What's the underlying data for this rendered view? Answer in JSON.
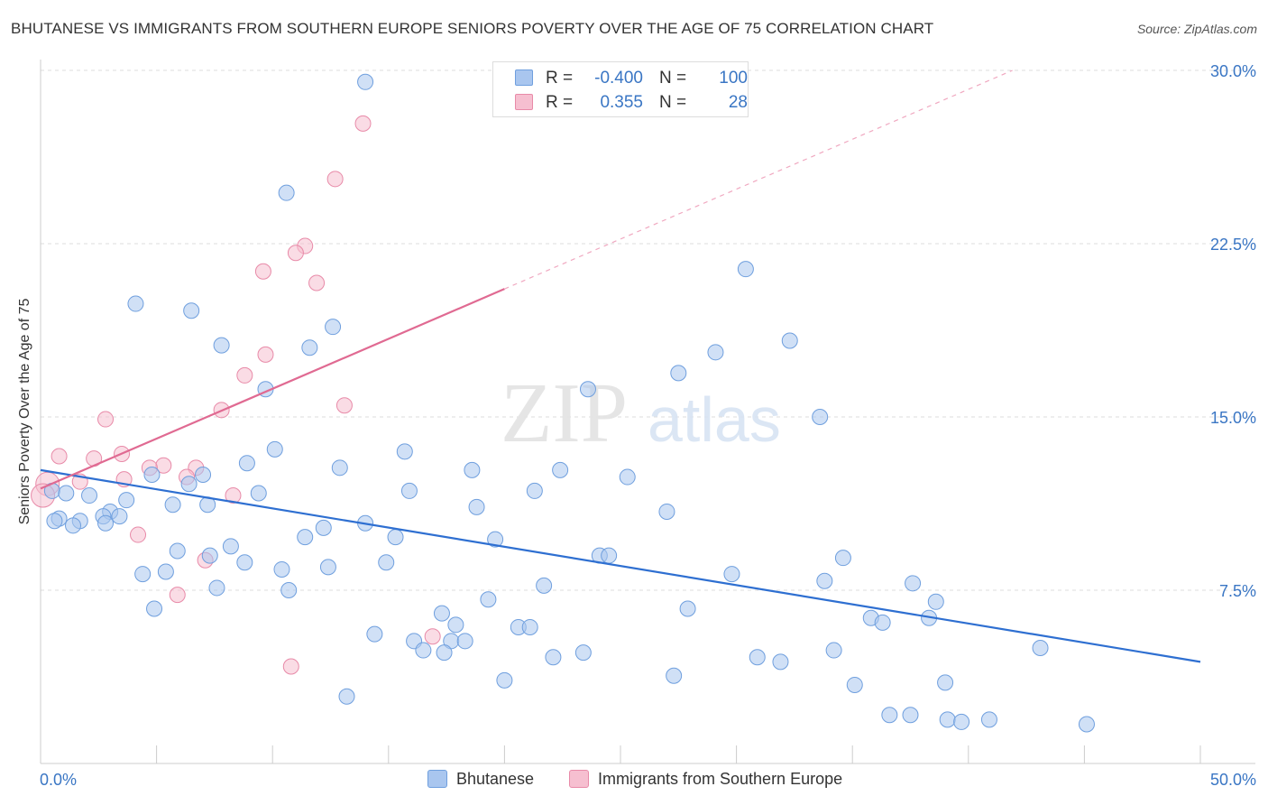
{
  "title": "BHUTANESE VS IMMIGRANTS FROM SOUTHERN EUROPE SENIORS POVERTY OVER THE AGE OF 75 CORRELATION CHART",
  "source": "Source: ZipAtlas.com",
  "watermark": {
    "part1": "ZIP",
    "part2": "atlas"
  },
  "legend_stats": [
    {
      "r_label": "R =",
      "r_value": "-0.400",
      "n_label": "N =",
      "n_value": "100",
      "color": "#a9c6ef",
      "border": "#6f9fde"
    },
    {
      "r_label": "R =",
      "r_value": "0.355",
      "n_label": "N =",
      "n_value": "28",
      "color": "#f6bfd0",
      "border": "#e88aa8"
    }
  ],
  "bottom_legend": [
    {
      "label": "Bhutanese",
      "color": "#a9c6ef",
      "border": "#6f9fde"
    },
    {
      "label": "Immigrants from Southern Europe",
      "color": "#f6bfd0",
      "border": "#e88aa8"
    }
  ],
  "chart_data": {
    "type": "scatter",
    "title": "BHUTANESE VS IMMIGRANTS FROM SOUTHERN EUROPE SENIORS POVERTY OVER THE AGE OF 75 CORRELATION CHART",
    "xlabel": "",
    "ylabel": "Seniors Poverty Over the Age of 75",
    "xlim": [
      0,
      50
    ],
    "ylim": [
      0,
      30
    ],
    "x_tick_labels": [
      "0.0%",
      "50.0%"
    ],
    "y_ticks": [
      7.5,
      15.0,
      22.5,
      30.0
    ],
    "y_tick_labels": [
      "7.5%",
      "15.0%",
      "22.5%",
      "30.0%"
    ],
    "grid": true,
    "series": [
      {
        "name": "Bhutanese",
        "color": "#6f9fde",
        "fill": "#a9c6ef",
        "trend": {
          "x": [
            0,
            50
          ],
          "y": [
            12.7,
            4.4
          ],
          "color": "#2e6fd1"
        },
        "points": [
          [
            14.0,
            29.5
          ],
          [
            10.6,
            24.7
          ],
          [
            30.4,
            21.4
          ],
          [
            4.1,
            19.9
          ],
          [
            6.5,
            19.6
          ],
          [
            12.6,
            18.9
          ],
          [
            7.8,
            18.1
          ],
          [
            11.6,
            18.0
          ],
          [
            29.1,
            17.8
          ],
          [
            32.3,
            18.3
          ],
          [
            27.5,
            16.9
          ],
          [
            9.7,
            16.2
          ],
          [
            23.6,
            16.2
          ],
          [
            33.6,
            15.0
          ],
          [
            10.1,
            13.6
          ],
          [
            15.7,
            13.5
          ],
          [
            4.8,
            12.5
          ],
          [
            7.0,
            12.5
          ],
          [
            8.9,
            13.0
          ],
          [
            12.9,
            12.8
          ],
          [
            18.6,
            12.7
          ],
          [
            22.4,
            12.7
          ],
          [
            25.3,
            12.4
          ],
          [
            6.4,
            12.1
          ],
          [
            0.5,
            11.8
          ],
          [
            1.1,
            11.7
          ],
          [
            2.1,
            11.6
          ],
          [
            9.4,
            11.7
          ],
          [
            15.9,
            11.8
          ],
          [
            21.3,
            11.8
          ],
          [
            3.7,
            11.4
          ],
          [
            5.7,
            11.2
          ],
          [
            7.2,
            11.2
          ],
          [
            18.8,
            11.1
          ],
          [
            27.0,
            10.9
          ],
          [
            3.0,
            10.9
          ],
          [
            3.4,
            10.7
          ],
          [
            0.8,
            10.6
          ],
          [
            1.7,
            10.5
          ],
          [
            2.7,
            10.7
          ],
          [
            1.4,
            10.3
          ],
          [
            2.8,
            10.4
          ],
          [
            14.0,
            10.4
          ],
          [
            12.2,
            10.2
          ],
          [
            11.4,
            9.8
          ],
          [
            15.3,
            9.8
          ],
          [
            19.6,
            9.7
          ],
          [
            8.2,
            9.4
          ],
          [
            5.9,
            9.2
          ],
          [
            7.3,
            9.0
          ],
          [
            24.1,
            9.0
          ],
          [
            24.5,
            9.0
          ],
          [
            34.6,
            8.9
          ],
          [
            8.8,
            8.7
          ],
          [
            14.9,
            8.7
          ],
          [
            10.4,
            8.4
          ],
          [
            12.4,
            8.5
          ],
          [
            4.4,
            8.2
          ],
          [
            5.4,
            8.3
          ],
          [
            29.8,
            8.2
          ],
          [
            33.8,
            7.9
          ],
          [
            37.6,
            7.8
          ],
          [
            7.6,
            7.6
          ],
          [
            10.7,
            7.5
          ],
          [
            21.7,
            7.7
          ],
          [
            19.3,
            7.1
          ],
          [
            4.9,
            6.7
          ],
          [
            27.9,
            6.7
          ],
          [
            38.6,
            7.0
          ],
          [
            17.3,
            6.5
          ],
          [
            17.9,
            6.0
          ],
          [
            20.6,
            5.9
          ],
          [
            21.1,
            5.9
          ],
          [
            35.8,
            6.3
          ],
          [
            36.3,
            6.1
          ],
          [
            38.3,
            6.3
          ],
          [
            14.4,
            5.6
          ],
          [
            16.1,
            5.3
          ],
          [
            17.7,
            5.3
          ],
          [
            18.3,
            5.3
          ],
          [
            16.5,
            4.9
          ],
          [
            17.4,
            4.8
          ],
          [
            22.1,
            4.6
          ],
          [
            23.4,
            4.8
          ],
          [
            34.2,
            4.9
          ],
          [
            43.1,
            5.0
          ],
          [
            30.9,
            4.6
          ],
          [
            31.9,
            4.4
          ],
          [
            27.3,
            3.8
          ],
          [
            20.0,
            3.6
          ],
          [
            35.1,
            3.4
          ],
          [
            39.0,
            3.5
          ],
          [
            13.2,
            2.9
          ],
          [
            36.6,
            2.1
          ],
          [
            37.5,
            2.1
          ],
          [
            39.1,
            1.9
          ],
          [
            39.7,
            1.8
          ],
          [
            40.9,
            1.9
          ],
          [
            45.1,
            1.7
          ],
          [
            0.6,
            10.5
          ]
        ]
      },
      {
        "name": "Immigrants from Southern Europe",
        "color": "#e88aa8",
        "fill": "#f6bfd0",
        "trend": {
          "x": [
            0,
            50
          ],
          "y": [
            11.9,
            33.5
          ],
          "solid_until": 20,
          "color": "#e06a92"
        },
        "points": [
          [
            13.9,
            27.7
          ],
          [
            12.7,
            25.3
          ],
          [
            11.4,
            22.4
          ],
          [
            11.0,
            22.1
          ],
          [
            9.6,
            21.3
          ],
          [
            11.9,
            20.8
          ],
          [
            9.7,
            17.7
          ],
          [
            8.8,
            16.8
          ],
          [
            13.1,
            15.5
          ],
          [
            7.8,
            15.3
          ],
          [
            2.8,
            14.9
          ],
          [
            0.8,
            13.3
          ],
          [
            3.5,
            13.4
          ],
          [
            2.3,
            13.2
          ],
          [
            5.3,
            12.9
          ],
          [
            6.7,
            12.8
          ],
          [
            4.7,
            12.8
          ],
          [
            6.3,
            12.4
          ],
          [
            3.6,
            12.3
          ],
          [
            1.7,
            12.2
          ],
          [
            0.3,
            12.1
          ],
          [
            0.1,
            11.6
          ],
          [
            8.3,
            11.6
          ],
          [
            4.2,
            9.9
          ],
          [
            7.1,
            8.8
          ],
          [
            5.9,
            7.3
          ],
          [
            16.9,
            5.5
          ],
          [
            10.8,
            4.2
          ]
        ]
      }
    ]
  }
}
